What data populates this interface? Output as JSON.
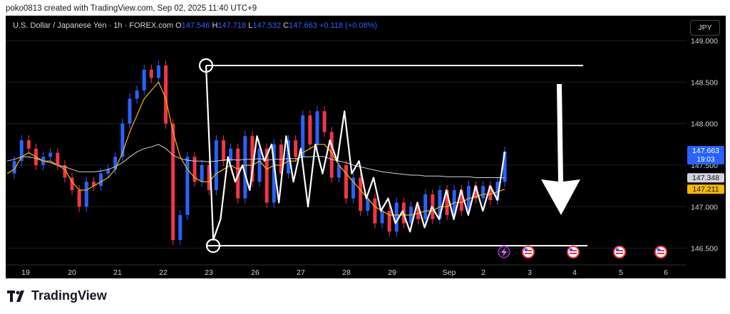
{
  "top_caption": "poko0813 created with TradingView.com, Sep 02, 2025 11:40 UTC+9",
  "header": {
    "symbol": "U.S. Dollar / Japanese Yen · 1h · FOREX.com",
    "o_label": "O",
    "o": "147.546",
    "h_label": "H",
    "h": "147.718",
    "l_label": "L",
    "l": "147.532",
    "c_label": "C",
    "c": "147.663",
    "change": "+0.118 (+0.08%)"
  },
  "currency_button": "JPY",
  "footer_brand": "TradingView",
  "colors": {
    "up": "#2962ff",
    "down": "#f23645",
    "ma_fast": "#f5b700",
    "ma_slow": "#d1d4dc",
    "overlay": "#ffffff",
    "bg": "#000000"
  },
  "chart_data": {
    "type": "line",
    "title": "U.S. Dollar / Japanese Yen · 1h · FOREX.com",
    "ylim": [
      146.3,
      149.3
    ],
    "y_ticks": [
      "149.000",
      "148.500",
      "148.000",
      "147.500",
      "147.000",
      "146.500"
    ],
    "x_ticks": [
      "19",
      "20",
      "21",
      "22",
      "23",
      "26",
      "27",
      "28",
      "29",
      "Sep",
      "2",
      "3",
      "4",
      "5",
      "6"
    ],
    "price_labels": [
      {
        "name": "last",
        "value": 147.663,
        "text": "147.663",
        "sub": "19:03",
        "color": "#2962ff"
      },
      {
        "name": "ma_slow",
        "value": 147.348,
        "text": "147.348",
        "color": "#d1d4dc"
      },
      {
        "name": "ma_fast",
        "value": 147.211,
        "text": "147.211",
        "color": "#f5b700"
      }
    ],
    "range_lines": {
      "top": 148.7,
      "bottom": 146.53
    },
    "series": [
      {
        "values": [
          147.4,
          147.55,
          147.8,
          147.7,
          147.5,
          147.6,
          147.65,
          147.5,
          147.35,
          147.2,
          147.0,
          147.3,
          147.25,
          147.4,
          147.45,
          147.6,
          148.0,
          148.3,
          148.4,
          148.65,
          148.55,
          148.7,
          148.0,
          146.6,
          146.9,
          147.6,
          147.3,
          147.5,
          147.2,
          147.8,
          147.55,
          147.7,
          147.1,
          147.85,
          147.3,
          147.7,
          147.05,
          147.75,
          147.4,
          147.8,
          147.6,
          148.1,
          147.75,
          148.15,
          147.9,
          147.35,
          147.5,
          147.1,
          147.35,
          146.95,
          147.1,
          146.8,
          146.95,
          146.7,
          147.05,
          146.8,
          147.0,
          146.85,
          147.15,
          146.85,
          147.2,
          146.9,
          147.2,
          146.95,
          147.25,
          147.1,
          147.25,
          147.08,
          147.3,
          147.663
        ]
      },
      {
        "values": [
          147.4,
          147.45,
          147.6,
          147.65,
          147.6,
          147.55,
          147.55,
          147.5,
          147.45,
          147.3,
          147.2,
          147.2,
          147.25,
          147.3,
          147.35,
          147.45,
          147.65,
          147.9,
          148.1,
          148.3,
          148.4,
          148.5,
          148.3,
          147.9,
          147.6,
          147.45,
          147.35,
          147.3,
          147.3,
          147.4,
          147.45,
          147.5,
          147.45,
          147.5,
          147.5,
          147.55,
          147.45,
          147.5,
          147.5,
          147.55,
          147.55,
          147.65,
          147.7,
          147.75,
          147.75,
          147.65,
          147.5,
          147.4,
          147.3,
          147.2,
          147.1,
          147.0,
          146.95,
          146.9,
          146.9,
          146.9,
          146.9,
          146.92,
          146.95,
          146.95,
          147.0,
          147.0,
          147.05,
          147.05,
          147.1,
          147.12,
          147.15,
          147.15,
          147.18,
          147.211
        ]
      },
      {
        "values": [
          147.55,
          147.57,
          147.6,
          147.6,
          147.58,
          147.55,
          147.53,
          147.5,
          147.48,
          147.45,
          147.42,
          147.42,
          147.42,
          147.43,
          147.45,
          147.48,
          147.53,
          147.6,
          147.66,
          147.7,
          147.72,
          147.75,
          147.7,
          147.62,
          147.58,
          147.56,
          147.55,
          147.55,
          147.54,
          147.55,
          147.56,
          147.57,
          147.56,
          147.57,
          147.57,
          147.58,
          147.56,
          147.57,
          147.57,
          147.58,
          147.58,
          147.6,
          147.6,
          147.61,
          147.6,
          147.57,
          147.55,
          147.53,
          147.5,
          147.48,
          147.46,
          147.44,
          147.42,
          147.41,
          147.4,
          147.39,
          147.38,
          147.38,
          147.37,
          147.37,
          147.37,
          147.36,
          147.36,
          147.36,
          147.36,
          147.35,
          147.35,
          147.35,
          147.35,
          147.348
        ]
      }
    ],
    "drawn_path": [
      148.7,
      146.6,
      146.85,
      147.6,
      147.3,
      147.5,
      147.2,
      147.85,
      147.55,
      147.75,
      147.05,
      147.85,
      147.3,
      147.7,
      147.0,
      147.75,
      147.4,
      147.8,
      147.55,
      148.15,
      147.4,
      147.55,
      147.1,
      147.35,
      146.95,
      147.1,
      146.8,
      146.95,
      146.7,
      147.05,
      146.75,
      147.0,
      146.85,
      147.2,
      146.85,
      147.2,
      146.9,
      147.25,
      146.95,
      147.25,
      147.08,
      147.663
    ],
    "arrow_direction": "down"
  }
}
